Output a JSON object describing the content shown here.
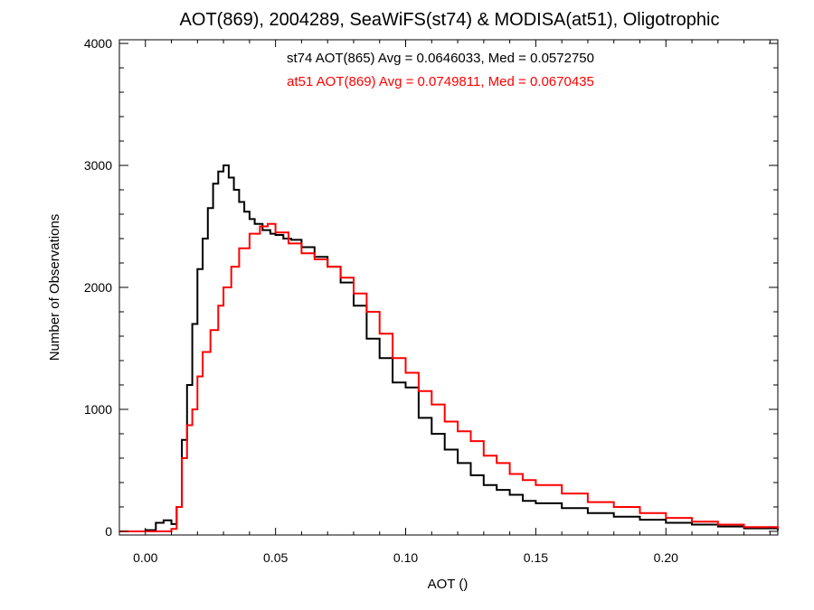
{
  "chart_data": {
    "type": "line",
    "title": "AOT(869), 2004289, SeaWiFS(st74) & MODISA(at51), Oligotrophic",
    "xlabel": "AOT ()",
    "ylabel": "Number of Observations",
    "xlim": [
      -0.01,
      0.243
    ],
    "ylim": [
      -30,
      4030
    ],
    "xticks": [
      0.0,
      0.05,
      0.1,
      0.15,
      0.2
    ],
    "xtick_labels": [
      "0.00",
      "0.05",
      "0.10",
      "0.15",
      "0.20"
    ],
    "yticks": [
      0,
      1000,
      2000,
      3000,
      4000
    ],
    "ytick_labels": [
      "0",
      "1000",
      "2000",
      "3000",
      "4000"
    ],
    "grid": false,
    "legend": "top-center",
    "annotations": [
      {
        "text": "st74 AOT(865) Avg = 0.0646033, Med = 0.0572750",
        "color": "#000000"
      },
      {
        "text": "at51 AOT(869) Avg = 0.0749811, Med = 0.0670435",
        "color": "#ff0000"
      }
    ],
    "series": [
      {
        "color": "#000000",
        "style": "step",
        "x": [
          -0.01,
          0.0,
          0.004,
          0.007,
          0.01,
          0.012,
          0.014,
          0.016,
          0.018,
          0.02,
          0.022,
          0.024,
          0.026,
          0.028,
          0.03,
          0.032,
          0.034,
          0.036,
          0.038,
          0.04,
          0.042,
          0.045,
          0.048,
          0.05,
          0.053,
          0.056,
          0.06,
          0.065,
          0.07,
          0.075,
          0.08,
          0.085,
          0.09,
          0.095,
          0.1,
          0.105,
          0.11,
          0.115,
          0.12,
          0.125,
          0.13,
          0.135,
          0.14,
          0.145,
          0.15,
          0.16,
          0.17,
          0.18,
          0.19,
          0.2,
          0.21,
          0.22,
          0.23,
          0.243
        ],
        "y": [
          0,
          10,
          70,
          90,
          60,
          200,
          750,
          1200,
          1700,
          2150,
          2400,
          2650,
          2850,
          2950,
          3000,
          2900,
          2800,
          2700,
          2620,
          2560,
          2520,
          2470,
          2440,
          2430,
          2400,
          2390,
          2330,
          2250,
          2170,
          2040,
          1850,
          1580,
          1420,
          1220,
          1180,
          930,
          800,
          670,
          560,
          460,
          380,
          340,
          300,
          250,
          230,
          190,
          150,
          120,
          95,
          70,
          55,
          40,
          25,
          10
        ]
      },
      {
        "color": "#ff0000",
        "style": "step",
        "x": [
          -0.01,
          0.005,
          0.01,
          0.012,
          0.014,
          0.016,
          0.018,
          0.02,
          0.022,
          0.025,
          0.028,
          0.03,
          0.033,
          0.036,
          0.04,
          0.044,
          0.047,
          0.05,
          0.055,
          0.06,
          0.065,
          0.07,
          0.075,
          0.08,
          0.085,
          0.09,
          0.095,
          0.1,
          0.105,
          0.11,
          0.115,
          0.12,
          0.125,
          0.13,
          0.135,
          0.14,
          0.145,
          0.15,
          0.16,
          0.17,
          0.18,
          0.19,
          0.2,
          0.21,
          0.22,
          0.23,
          0.243
        ],
        "y": [
          0,
          0,
          20,
          200,
          600,
          870,
          1000,
          1270,
          1470,
          1650,
          1850,
          2000,
          2170,
          2320,
          2440,
          2500,
          2520,
          2450,
          2360,
          2280,
          2230,
          2170,
          2080,
          1950,
          1800,
          1620,
          1420,
          1300,
          1150,
          1040,
          900,
          820,
          740,
          620,
          560,
          470,
          420,
          380,
          310,
          240,
          200,
          150,
          110,
          80,
          55,
          35,
          20
        ]
      }
    ]
  }
}
